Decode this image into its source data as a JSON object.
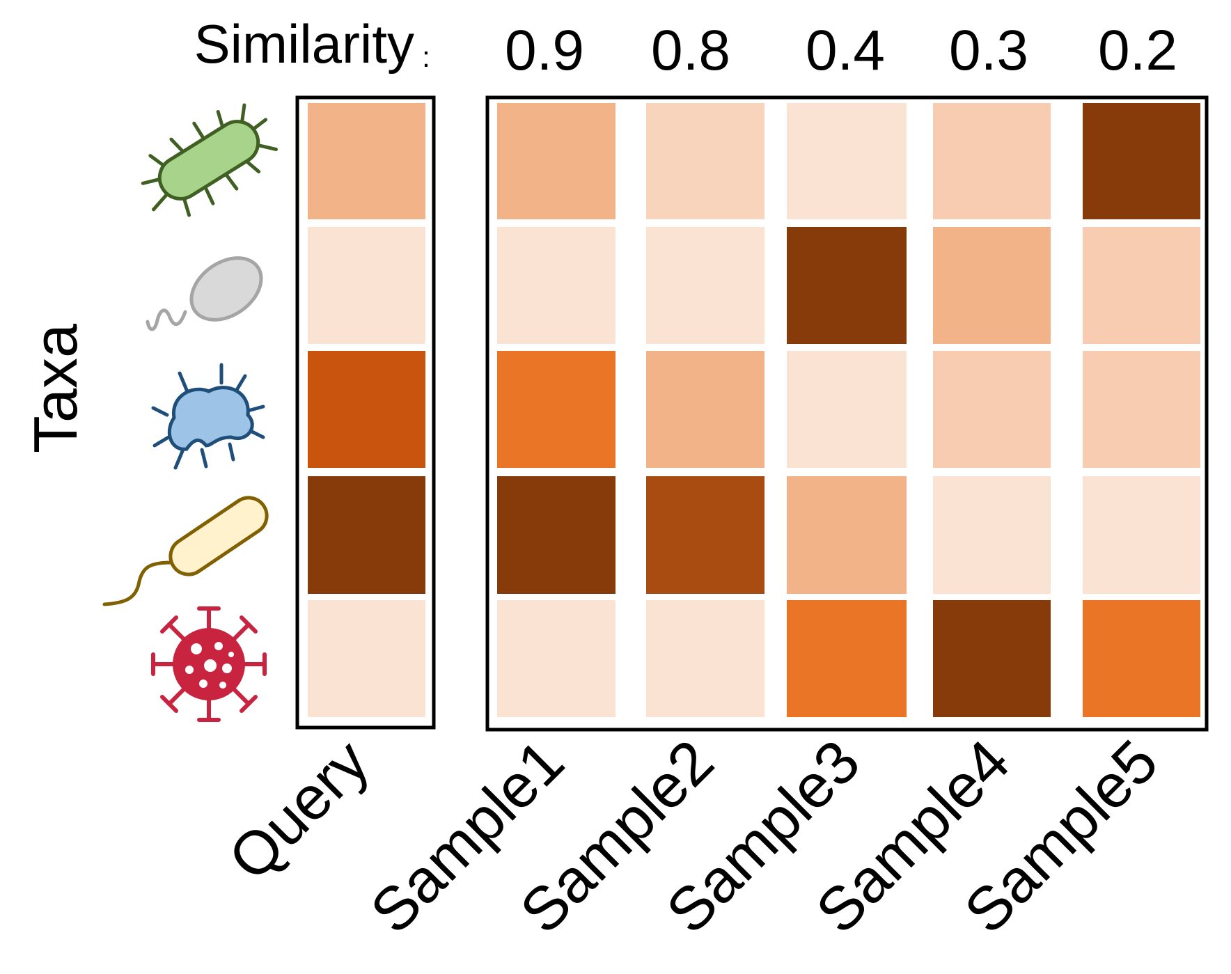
{
  "similarity_label": "Similarity",
  "similarity_separator": ":",
  "y_axis_label": "Taxa",
  "columns": [
    {
      "label": "Query",
      "similarity": ""
    },
    {
      "label": "Sample1",
      "similarity": "0.9"
    },
    {
      "label": "Sample2",
      "similarity": "0.8"
    },
    {
      "label": "Sample3",
      "similarity": "0.4"
    },
    {
      "label": "Sample4",
      "similarity": "0.3"
    },
    {
      "label": "Sample5",
      "similarity": "0.2"
    }
  ],
  "taxa_icons": [
    "rod-bacterium-green-icon",
    "flagellated-ovoid-grey-icon",
    "amoeba-blue-icon",
    "flagellated-rod-yellow-icon",
    "virus-red-icon"
  ],
  "palette": [
    "#fae3d3",
    "#f8d4bc",
    "#f3b388",
    "#ea7526",
    "#c8540e",
    "#a94c11",
    "#873b0b"
  ],
  "colors": {
    "query": [
      "#f3b388",
      "#fae3d3",
      "#c8540e",
      "#873b0b",
      "#fae3d3"
    ],
    "samples": [
      [
        "#f3b388",
        "#f8d4bc",
        "#fae3d3",
        "#f8ccb0",
        "#873b0b"
      ],
      [
        "#fae3d3",
        "#fae3d3",
        "#873b0b",
        "#f3b388",
        "#f8ccb0"
      ],
      [
        "#ea7526",
        "#f3b388",
        "#fae3d3",
        "#f8ccb0",
        "#f8ccb0"
      ],
      [
        "#873b0b",
        "#a94c11",
        "#f3b388",
        "#fae3d3",
        "#fae3d3"
      ],
      [
        "#fae3d3",
        "#fae3d3",
        "#ea7526",
        "#873b0b",
        "#ea7526"
      ]
    ]
  }
}
